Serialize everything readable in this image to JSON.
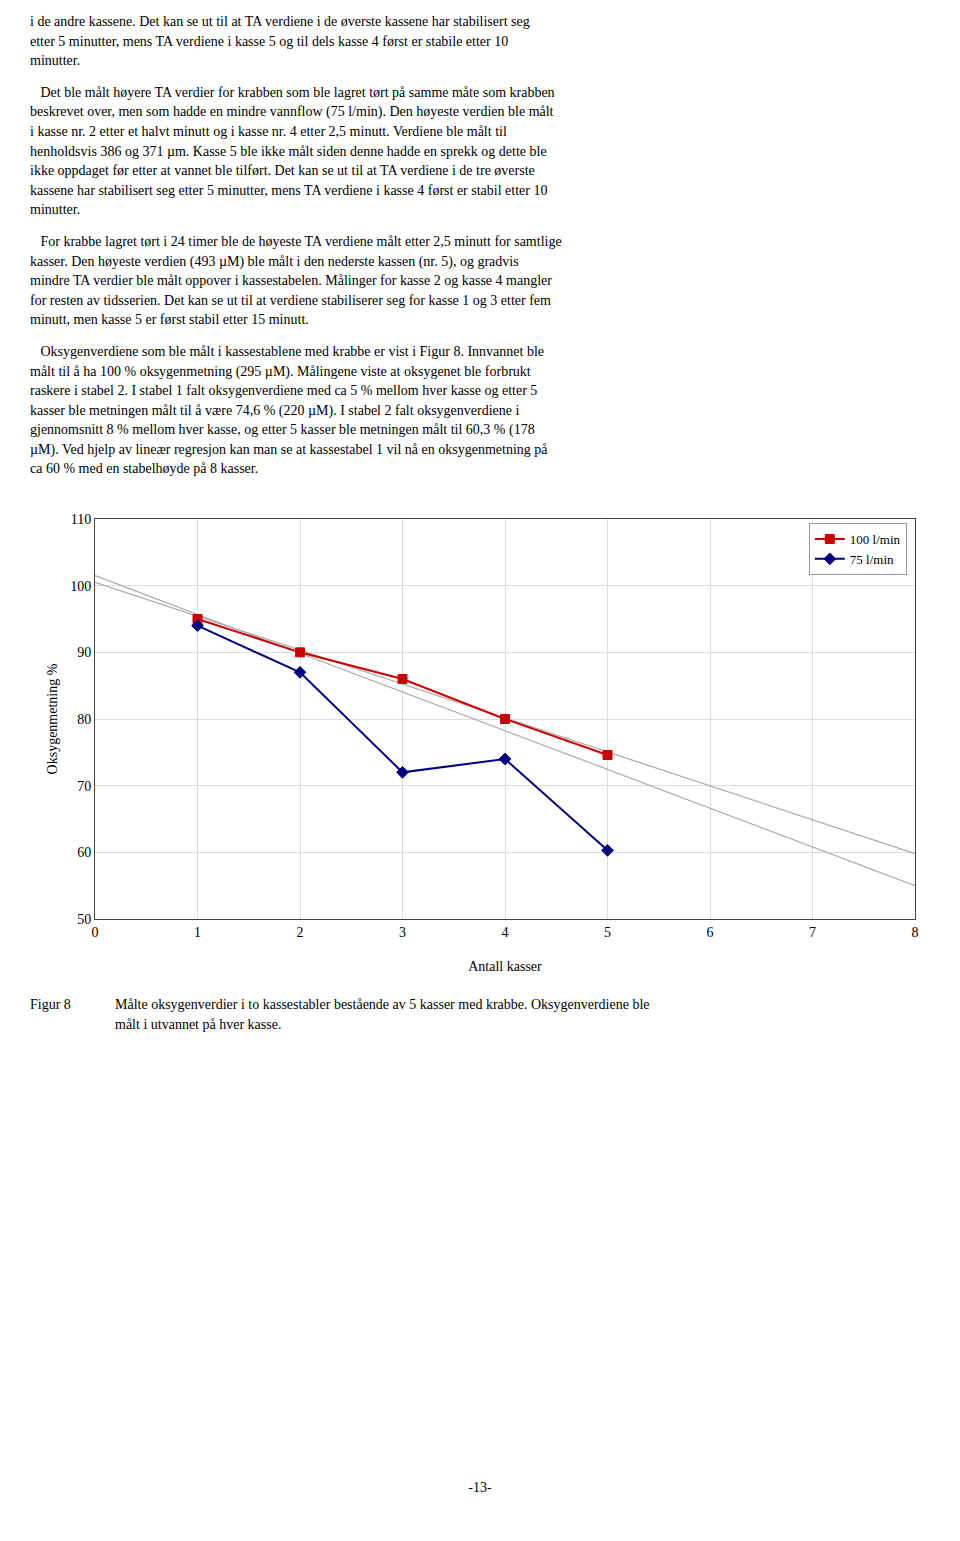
{
  "chart_data": {
    "type": "line",
    "xlabel": "Antall kasser",
    "ylabel": "Oksygenmetning %",
    "xlim": [
      0,
      8
    ],
    "ylim": [
      50,
      110
    ],
    "xticks": [
      0,
      1,
      2,
      3,
      4,
      5,
      6,
      7,
      8
    ],
    "yticks": [
      50,
      60,
      70,
      80,
      90,
      100,
      110
    ],
    "grid": true,
    "legend": "upper right",
    "series": [
      {
        "color": "#aaaaaa",
        "line_style": "solid",
        "x": [
          0,
          8
        ],
        "values": [
          100.5,
          59.8
        ]
      },
      {
        "color": "#aaaaaa",
        "line_style": "solid",
        "x": [
          0,
          8
        ],
        "values": [
          101.5,
          55.0
        ]
      },
      {
        "name": "100 l/min",
        "color": "#cc0000",
        "marker": "square",
        "line_style": "solid",
        "x": [
          1,
          2,
          3,
          4,
          5
        ],
        "values": [
          95,
          90,
          86,
          80,
          74.6
        ]
      },
      {
        "name": "75 l/min",
        "color": "#000080",
        "marker": "diamond",
        "line_style": "solid",
        "x": [
          1,
          2,
          3,
          4,
          5
        ],
        "values": [
          94,
          87,
          72,
          74,
          60.3
        ]
      }
    ],
    "annotations": [
      "i de andre kassene. Det kan se ut til at TA verdiene i de øverste kassene har stabilisert seg\netter 5 minutter, mens TA verdiene i kasse 5 og til dels kasse 4 først er stabile etter 10\nminutter.",
      "   Det ble målt høyere TA verdier for krabben som ble lagret tørt på samme måte som krabben\nbeskrevet over, men som hadde en mindre vannflow (75 l/min). Den høyeste verdien ble målt\ni kasse nr. 2 etter et halvt minutt og i kasse nr. 4 etter 2,5 minutt. Verdiene ble målt til\nhenholdsvis 386 og 371 µm. Kasse 5 ble ikke målt siden denne hadde en sprekk og dette ble\nikke oppdaget før etter at vannet ble tilført. Det kan se ut til at TA verdiene i de tre øverste\nkassene har stabilisert seg etter 5 minutter, mens TA verdiene i kasse 4 først er stabil etter 10\nminutter.",
      "   For krabbe lagret tørt i 24 timer ble de høyeste TA verdiene målt etter 2,5 minutt for samtlige\nkasser. Den høyeste verdien (493 µM) ble målt i den nederste kassen (nr. 5), og gradvis\nmindre TA verdier ble målt oppover i kassestabelen. Målinger for kasse 2 og kasse 4 mangler\nfor resten av tidsserien. Det kan se ut til at verdiene stabiliserer seg for kasse 1 og 3 etter fem\nminutt, men kasse 5 er først stabil etter 15 minutt.",
      "   Oksygenverdiene som ble målt i kassestablene med krabbe er vist i Figur 8. Innvannet ble\nmålt til å ha 100 % oksygenmetning (295 µM). Målingene viste at oksygenet ble forbrukt\nraskere i stabel 2. I stabel 1 falt oksygenverdiene med ca 5 % mellom hver kasse og etter 5\nkasser ble metningen målt til å være 74,6 % (220 µM). I stabel 2 falt oksygenverdiene i\ngjennomsnitt 8 % mellom hver kasse, og etter 5 kasser ble metningen målt til 60,3 % (178\nµM). Ved hjelp av lineær regresjon kan man se at kassestabel 1 vil nå en oksygenmetning på\nca 60 % med en stabelhøyde på 8 kasser."
    ],
    "caption": [
      "Figur 8",
      "Målte oksygenverdier i to kassestabler bestående av 5 kasser med krabbe. Oksygenverdiene ble\nmålt i utvannet på hver kasse."
    ],
    "page_number": "-13-"
  }
}
